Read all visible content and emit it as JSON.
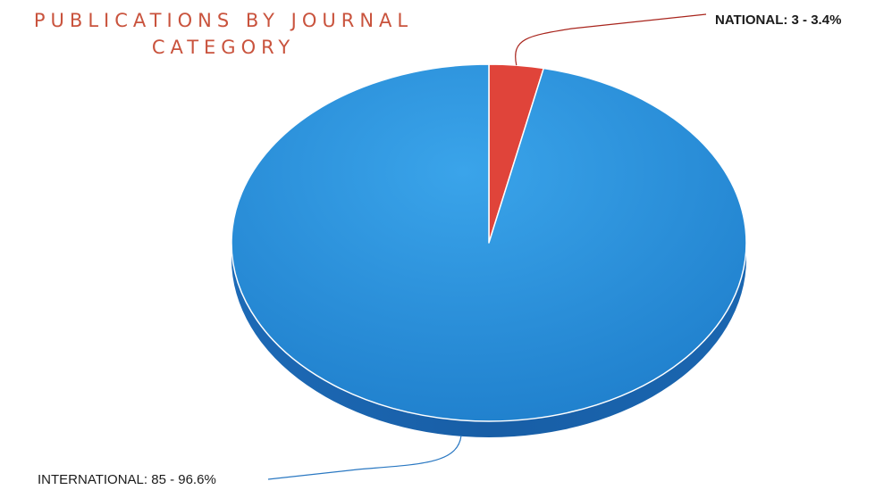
{
  "title_lines": [
    "PUBLICATIONS BY JOURNAL",
    "CATEGORY"
  ],
  "chart_data": {
    "type": "pie",
    "title": "PUBLICATIONS BY JOURNAL CATEGORY",
    "slices": [
      {
        "label": "NATIONAL",
        "value": 3,
        "percent": 3.4,
        "color": "#e0443a",
        "label_text": "NATIONAL: 3 - 3.4%"
      },
      {
        "label": "INTERNATIONAL",
        "value": 85,
        "percent": 96.6,
        "color": "#2b90d9",
        "label_text": "INTERNATIONAL: 85 - 96.6%"
      }
    ],
    "style": "3d",
    "legend": "none"
  },
  "colors": {
    "title": "#c9533d",
    "national_fill": "#e0443a",
    "national_side": "#a8241c",
    "international_fill": "#2b90d9",
    "international_side": "#1c5fa8"
  }
}
